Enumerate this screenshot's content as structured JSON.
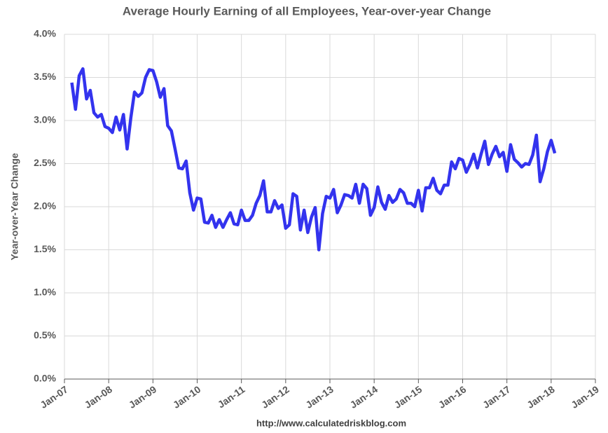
{
  "chart_data": {
    "type": "line",
    "title": "Average Hourly Earning of all Employees, Year-over-year Change",
    "y_label": "Year-over-Year Change",
    "source": "http://www.calculatedriskblog.com",
    "grid": true,
    "xlim": [
      "2007-01",
      "2019-01"
    ],
    "xticks": [
      {
        "value": "2007-01",
        "label": "Jan-07"
      },
      {
        "value": "2008-01",
        "label": "Jan-08"
      },
      {
        "value": "2009-01",
        "label": "Jan-09"
      },
      {
        "value": "2010-01",
        "label": "Jan-10"
      },
      {
        "value": "2011-01",
        "label": "Jan-11"
      },
      {
        "value": "2012-01",
        "label": "Jan-12"
      },
      {
        "value": "2013-01",
        "label": "Jan-13"
      },
      {
        "value": "2014-01",
        "label": "Jan-14"
      },
      {
        "value": "2015-01",
        "label": "Jan-15"
      },
      {
        "value": "2016-01",
        "label": "Jan-16"
      },
      {
        "value": "2017-01",
        "label": "Jan-17"
      },
      {
        "value": "2018-01",
        "label": "Jan-18"
      },
      {
        "value": "2019-01",
        "label": "Jan-19"
      }
    ],
    "ylim": [
      0,
      4
    ],
    "yticks": [
      {
        "value": 0,
        "label": "0.0%"
      },
      {
        "value": 0.5,
        "label": "0.5%"
      },
      {
        "value": 1,
        "label": "1.0%"
      },
      {
        "value": 1.5,
        "label": "1.5%"
      },
      {
        "value": 2,
        "label": "2.0%"
      },
      {
        "value": 2.5,
        "label": "2.5%"
      },
      {
        "value": 3,
        "label": "3.0%"
      },
      {
        "value": 3.5,
        "label": "3.5%"
      },
      {
        "value": 4,
        "label": "4.0%"
      }
    ],
    "x": [
      "2007-03",
      "2007-04",
      "2007-05",
      "2007-06",
      "2007-07",
      "2007-08",
      "2007-09",
      "2007-10",
      "2007-11",
      "2007-12",
      "2008-01",
      "2008-02",
      "2008-03",
      "2008-04",
      "2008-05",
      "2008-06",
      "2008-07",
      "2008-08",
      "2008-09",
      "2008-10",
      "2008-11",
      "2008-12",
      "2009-01",
      "2009-02",
      "2009-03",
      "2009-04",
      "2009-05",
      "2009-06",
      "2009-07",
      "2009-08",
      "2009-09",
      "2009-10",
      "2009-11",
      "2009-12",
      "2010-01",
      "2010-02",
      "2010-03",
      "2010-04",
      "2010-05",
      "2010-06",
      "2010-07",
      "2010-08",
      "2010-09",
      "2010-10",
      "2010-11",
      "2010-12",
      "2011-01",
      "2011-02",
      "2011-03",
      "2011-04",
      "2011-05",
      "2011-06",
      "2011-07",
      "2011-08",
      "2011-09",
      "2011-10",
      "2011-11",
      "2011-12",
      "2012-01",
      "2012-02",
      "2012-03",
      "2012-04",
      "2012-05",
      "2012-06",
      "2012-07",
      "2012-08",
      "2012-09",
      "2012-10",
      "2012-11",
      "2012-12",
      "2013-01",
      "2013-02",
      "2013-03",
      "2013-04",
      "2013-05",
      "2013-06",
      "2013-07",
      "2013-08",
      "2013-09",
      "2013-10",
      "2013-11",
      "2013-12",
      "2014-01",
      "2014-02",
      "2014-03",
      "2014-04",
      "2014-05",
      "2014-06",
      "2014-07",
      "2014-08",
      "2014-09",
      "2014-10",
      "2014-11",
      "2014-12",
      "2015-01",
      "2015-02",
      "2015-03",
      "2015-04",
      "2015-05",
      "2015-06",
      "2015-07",
      "2015-08",
      "2015-09",
      "2015-10",
      "2015-11",
      "2015-12",
      "2016-01",
      "2016-02",
      "2016-03",
      "2016-04",
      "2016-05",
      "2016-06",
      "2016-07",
      "2016-08",
      "2016-09",
      "2016-10",
      "2016-11",
      "2016-12",
      "2017-01",
      "2017-02",
      "2017-03",
      "2017-04",
      "2017-05",
      "2017-06",
      "2017-07",
      "2017-08",
      "2017-09",
      "2017-10",
      "2017-11",
      "2017-12",
      "2018-01",
      "2018-02"
    ],
    "series": [
      {
        "color": "#3333ee",
        "values": [
          3.44,
          3.13,
          3.52,
          3.6,
          3.25,
          3.35,
          3.09,
          3.04,
          3.07,
          2.93,
          2.91,
          2.86,
          3.04,
          2.89,
          3.07,
          2.67,
          3.03,
          3.33,
          3.28,
          3.32,
          3.5,
          3.59,
          3.58,
          3.45,
          3.27,
          3.37,
          2.94,
          2.88,
          2.67,
          2.45,
          2.44,
          2.53,
          2.16,
          1.96,
          2.1,
          2.09,
          1.82,
          1.81,
          1.9,
          1.76,
          1.85,
          1.76,
          1.85,
          1.93,
          1.8,
          1.79,
          1.96,
          1.84,
          1.84,
          1.9,
          2.04,
          2.13,
          2.3,
          1.94,
          1.94,
          2.07,
          1.98,
          2.02,
          1.75,
          1.79,
          2.15,
          2.12,
          1.73,
          1.96,
          1.7,
          1.88,
          1.99,
          1.5,
          1.92,
          2.12,
          2.1,
          2.2,
          1.93,
          2.02,
          2.14,
          2.13,
          2.1,
          2.26,
          2.04,
          2.26,
          2.21,
          1.9,
          1.99,
          2.23,
          2.05,
          1.97,
          2.13,
          2.05,
          2.09,
          2.2,
          2.16,
          2.04,
          2.04,
          2.0,
          2.19,
          1.95,
          2.22,
          2.22,
          2.33,
          2.19,
          2.15,
          2.25,
          2.25,
          2.52,
          2.44,
          2.56,
          2.54,
          2.4,
          2.49,
          2.61,
          2.45,
          2.61,
          2.76,
          2.49,
          2.61,
          2.7,
          2.58,
          2.63,
          2.41,
          2.72,
          2.55,
          2.51,
          2.46,
          2.5,
          2.49,
          2.6,
          2.83,
          2.29,
          2.44,
          2.64,
          2.77,
          2.62
        ]
      }
    ]
  }
}
